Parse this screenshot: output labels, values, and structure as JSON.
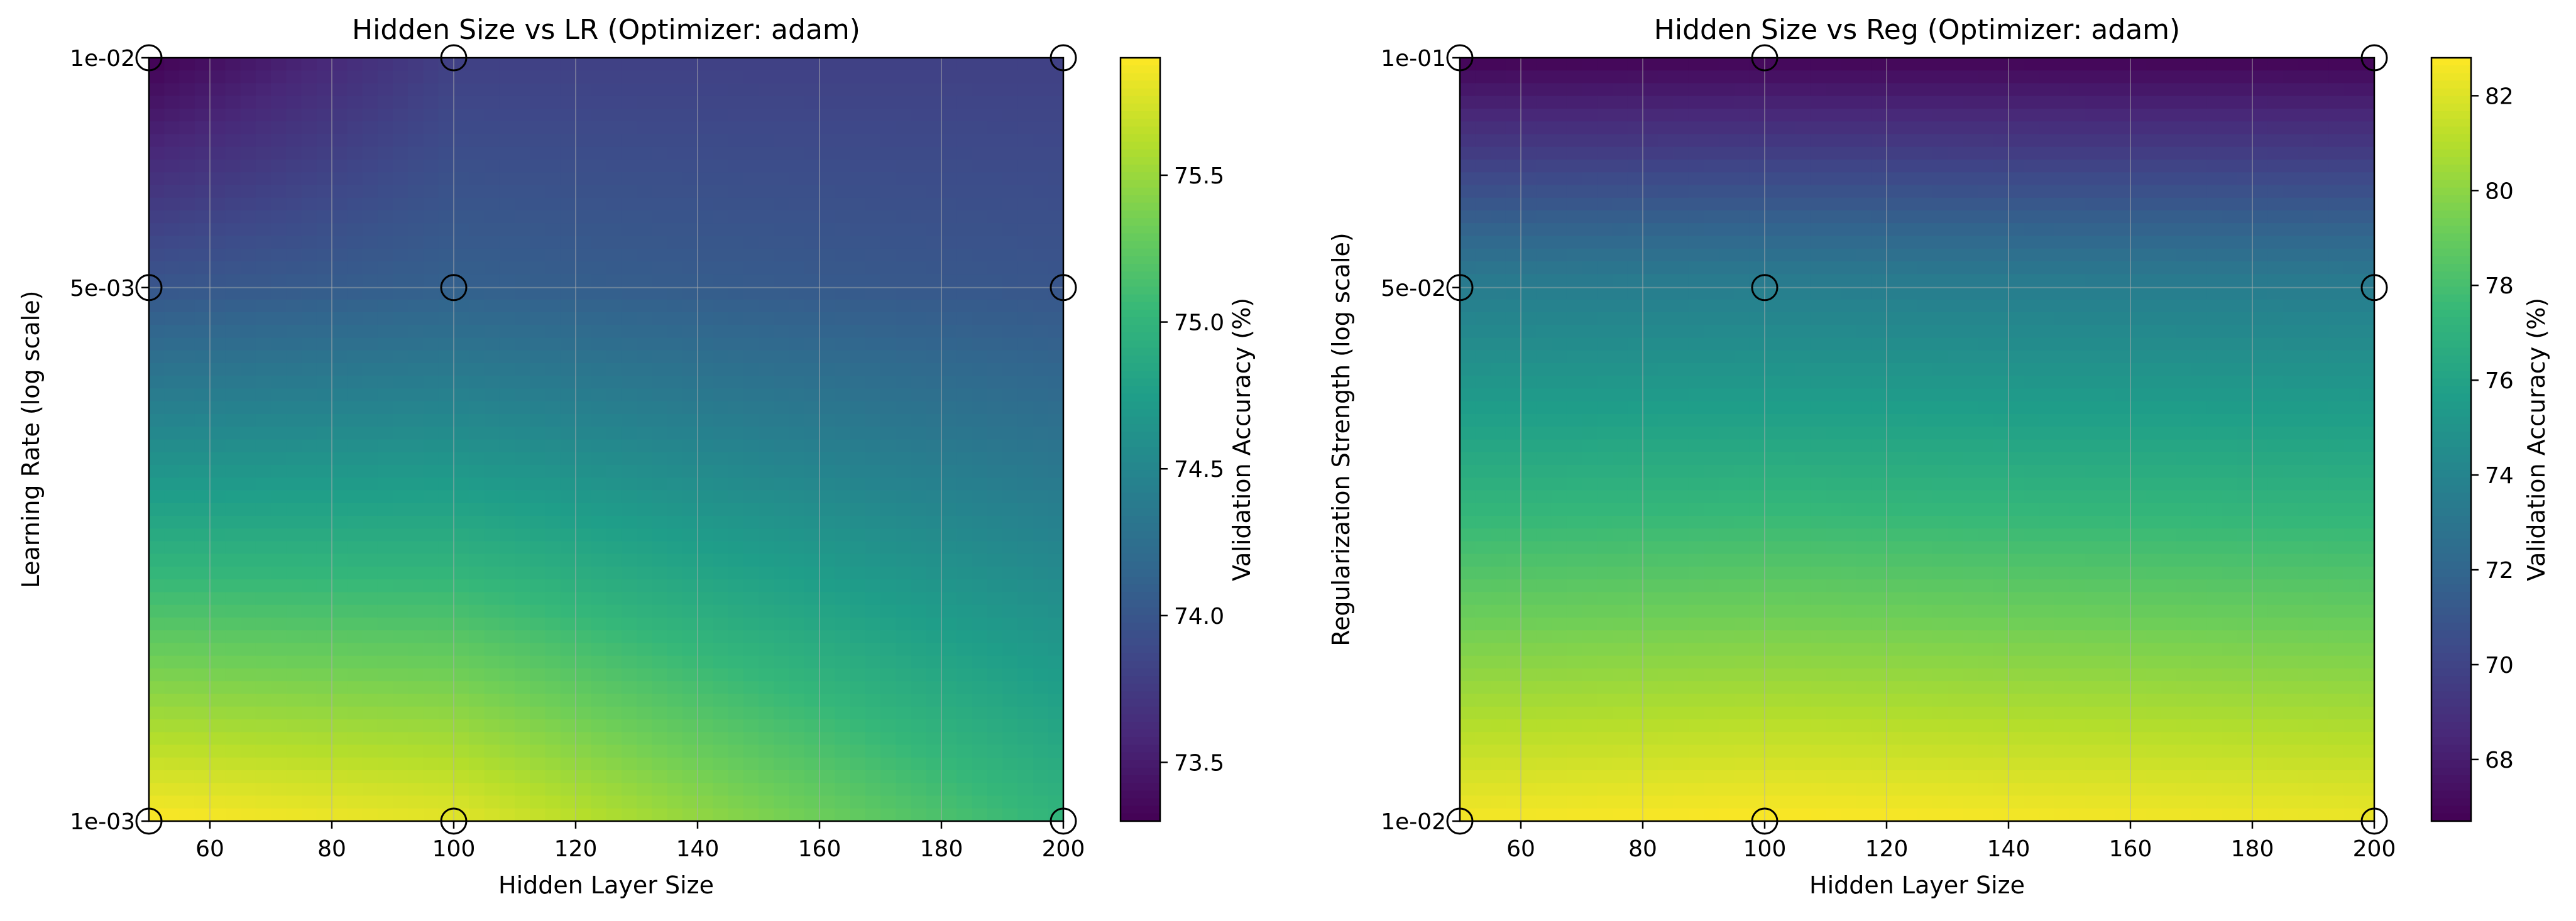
{
  "chart_data": [
    {
      "type": "heatmap",
      "title": "Hidden Size vs LR (Optimizer: adam)",
      "xlabel": "Hidden Layer Size",
      "ylabel": "Learning Rate (log scale)",
      "colorbar_label": "Validation Accuracy (%)",
      "colormap": "viridis",
      "interpolation": "smooth",
      "xlim": [
        50,
        200
      ],
      "y_scale": "log",
      "ylim": [
        0.001,
        0.01
      ],
      "x_ticks": [
        60,
        80,
        100,
        120,
        140,
        160,
        180,
        200
      ],
      "x_tick_labels": [
        "60",
        "80",
        "100",
        "120",
        "140",
        "160",
        "180",
        "200"
      ],
      "y_ticks": [
        0.001,
        0.005,
        0.01
      ],
      "y_tick_labels": [
        "1e-03",
        "5e-03",
        "1e-02"
      ],
      "grid": true,
      "x": [
        50,
        100,
        200
      ],
      "y": [
        0.001,
        0.005,
        0.01
      ],
      "z": [
        [
          75.9,
          75.8,
          75.0
        ],
        [
          74.0,
          74.1,
          74.0
        ],
        [
          73.3,
          73.8,
          73.8
        ]
      ],
      "colorbar_range": [
        73.3,
        75.9
      ],
      "colorbar_ticks": [
        73.5,
        74.0,
        74.5,
        75.0,
        75.5
      ],
      "colorbar_tick_labels": [
        "73.5",
        "74.0",
        "74.5",
        "75.0",
        "75.5"
      ],
      "markers": "open circles at sampled grid points"
    },
    {
      "type": "heatmap",
      "title": "Hidden Size vs Reg (Optimizer: adam)",
      "xlabel": "Hidden Layer Size",
      "ylabel": "Regularization Strength (log scale)",
      "colorbar_label": "Validation Accuracy (%)",
      "colormap": "viridis",
      "interpolation": "smooth",
      "xlim": [
        50,
        200
      ],
      "y_scale": "log",
      "ylim": [
        0.01,
        0.1
      ],
      "x_ticks": [
        60,
        80,
        100,
        120,
        140,
        160,
        180,
        200
      ],
      "x_tick_labels": [
        "60",
        "80",
        "100",
        "120",
        "140",
        "160",
        "180",
        "200"
      ],
      "y_ticks": [
        0.01,
        0.05,
        0.1
      ],
      "y_tick_labels": [
        "1e-02",
        "5e-02",
        "1e-01"
      ],
      "grid": true,
      "x": [
        50,
        100,
        200
      ],
      "y": [
        0.01,
        0.05,
        0.1
      ],
      "z": [
        [
          82.6,
          82.8,
          82.4
        ],
        [
          73.5,
          73.6,
          73.5
        ],
        [
          66.8,
          66.9,
          66.8
        ]
      ],
      "colorbar_range": [
        66.7,
        82.8
      ],
      "colorbar_ticks": [
        68,
        70,
        72,
        74,
        76,
        78,
        80,
        82
      ],
      "colorbar_tick_labels": [
        "68",
        "70",
        "72",
        "74",
        "76",
        "78",
        "80",
        "82"
      ],
      "markers": "open circles at sampled grid points"
    }
  ]
}
